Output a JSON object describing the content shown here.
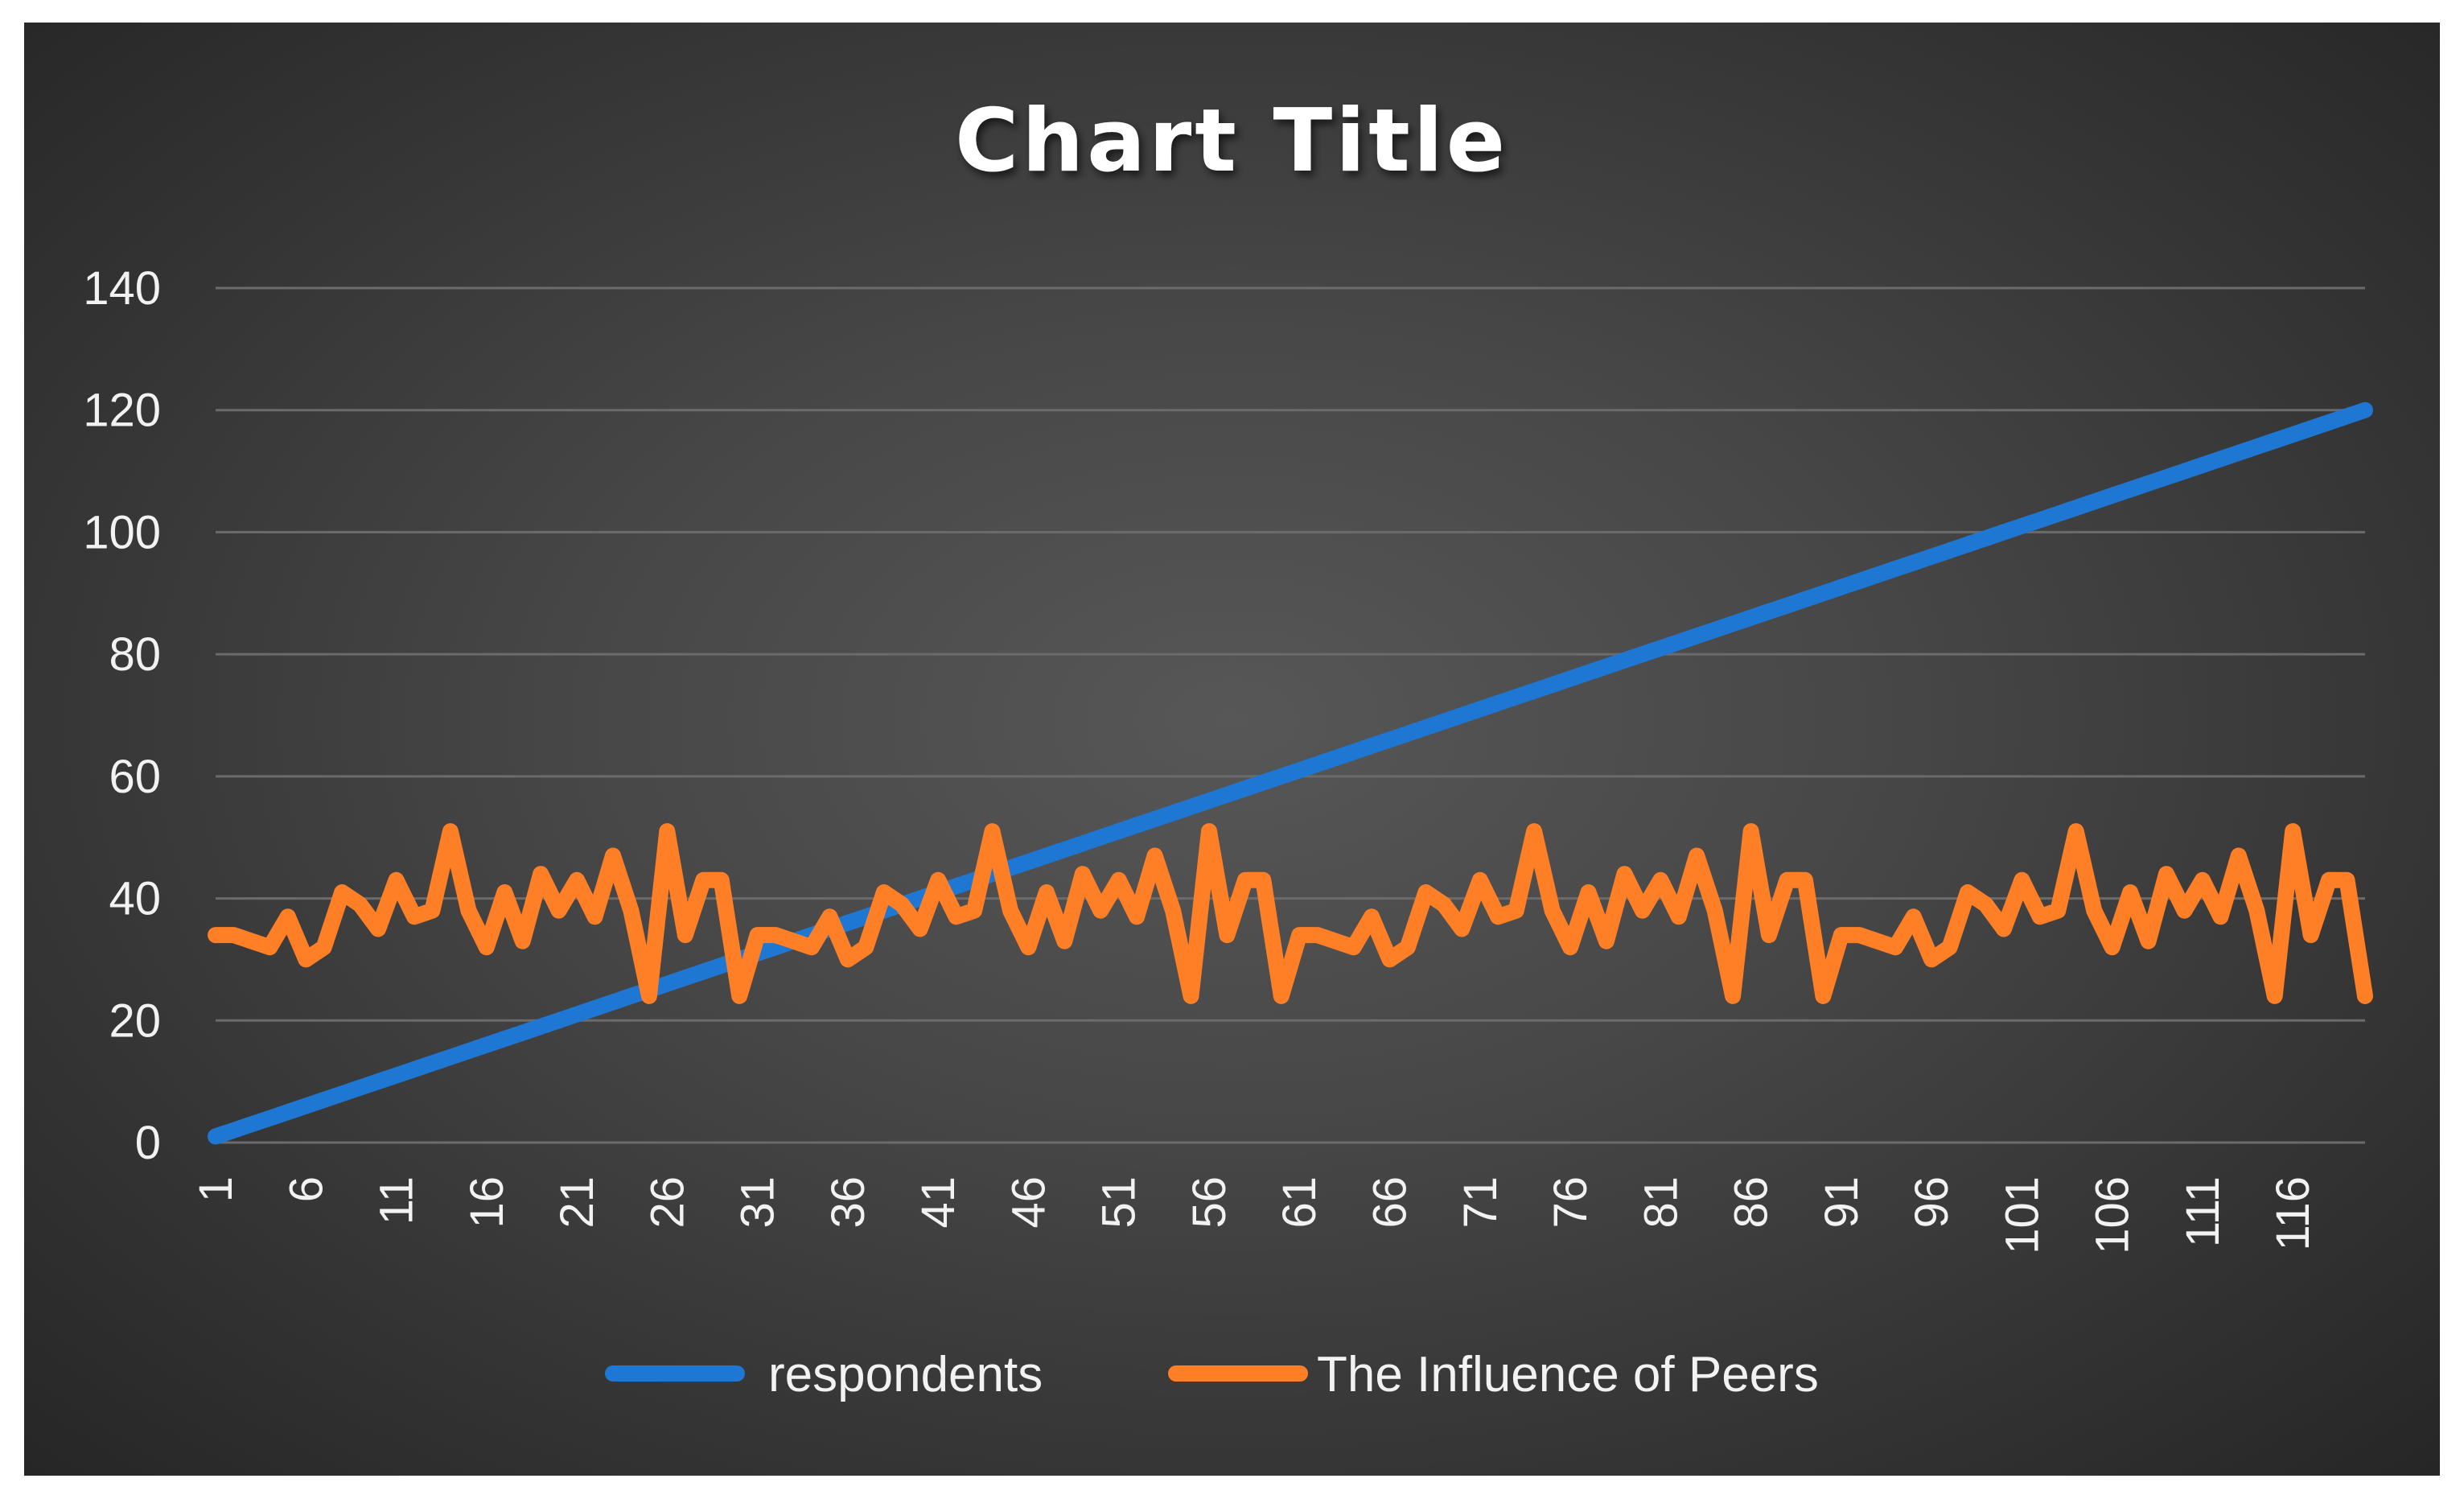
{
  "chart_data": {
    "type": "line",
    "title": "Chart Title",
    "xlabel": "",
    "ylabel": "",
    "ylim": [
      0,
      140
    ],
    "yticks": [
      0,
      20,
      40,
      60,
      80,
      100,
      120,
      140
    ],
    "xtick_labels": [
      "1",
      "6",
      "11",
      "16",
      "21",
      "26",
      "31",
      "36",
      "41",
      "46",
      "51",
      "56",
      "61",
      "66",
      "71",
      "76",
      "81",
      "86",
      "91",
      "96",
      "101",
      "106",
      "111",
      "116"
    ],
    "x": [
      1,
      2,
      3,
      4,
      5,
      6,
      7,
      8,
      9,
      10,
      11,
      12,
      13,
      14,
      15,
      16,
      17,
      18,
      19,
      20,
      21,
      22,
      23,
      24,
      25,
      26,
      27,
      28,
      29,
      30,
      31,
      32,
      33,
      34,
      35,
      36,
      37,
      38,
      39,
      40,
      41,
      42,
      43,
      44,
      45,
      46,
      47,
      48,
      49,
      50,
      51,
      52,
      53,
      54,
      55,
      56,
      57,
      58,
      59,
      60,
      61,
      62,
      63,
      64,
      65,
      66,
      67,
      68,
      69,
      70,
      71,
      72,
      73,
      74,
      75,
      76,
      77,
      78,
      79,
      80,
      81,
      82,
      83,
      84,
      85,
      86,
      87,
      88,
      89,
      90,
      91,
      92,
      93,
      94,
      95,
      96,
      97,
      98,
      99,
      100,
      101,
      102,
      103,
      104,
      105,
      106,
      107,
      108,
      109,
      110,
      111,
      112,
      113,
      114,
      115,
      116,
      117,
      118,
      119,
      120
    ],
    "grid": true,
    "legend_position": "bottom",
    "series": [
      {
        "name": "respondents",
        "color": "#1f77d4",
        "values": [
          1,
          2,
          3,
          4,
          5,
          6,
          7,
          8,
          9,
          10,
          11,
          12,
          13,
          14,
          15,
          16,
          17,
          18,
          19,
          20,
          21,
          22,
          23,
          24,
          25,
          26,
          27,
          28,
          29,
          30,
          31,
          32,
          33,
          34,
          35,
          36,
          37,
          38,
          39,
          40,
          41,
          42,
          43,
          44,
          45,
          46,
          47,
          48,
          49,
          50,
          51,
          52,
          53,
          54,
          55,
          56,
          57,
          58,
          59,
          60,
          61,
          62,
          63,
          64,
          65,
          66,
          67,
          68,
          69,
          70,
          71,
          72,
          73,
          74,
          75,
          76,
          77,
          78,
          79,
          80,
          81,
          82,
          83,
          84,
          85,
          86,
          87,
          88,
          89,
          90,
          91,
          92,
          93,
          94,
          95,
          96,
          97,
          98,
          99,
          100,
          101,
          102,
          103,
          104,
          105,
          106,
          107,
          108,
          109,
          110,
          111,
          112,
          113,
          114,
          115,
          116,
          117,
          118,
          119,
          120
        ]
      },
      {
        "name": "The Influence of Peers",
        "color": "#ff7f27",
        "values": [
          34,
          34,
          33,
          32,
          37,
          30,
          32,
          41,
          39,
          35,
          43,
          37,
          38,
          51,
          38,
          32,
          41,
          33,
          44,
          38,
          43,
          37,
          47,
          38,
          24,
          51,
          34,
          43,
          43,
          24,
          34,
          34,
          33,
          32,
          37,
          30,
          32,
          41,
          39,
          35,
          43,
          37,
          38,
          51,
          38,
          32,
          41,
          33,
          44,
          38,
          43,
          37,
          47,
          38,
          24,
          51,
          34,
          43,
          43,
          24,
          34,
          34,
          33,
          32,
          37,
          30,
          32,
          41,
          39,
          35,
          43,
          37,
          38,
          51,
          38,
          32,
          41,
          33,
          44,
          38,
          43,
          37,
          47,
          38,
          24,
          51,
          34,
          43,
          43,
          24,
          34,
          34,
          33,
          32,
          37,
          30,
          32,
          41,
          39,
          35,
          43,
          37,
          38,
          51,
          38,
          32,
          41,
          33,
          44,
          38,
          43,
          37,
          47,
          38,
          24,
          51,
          34,
          43,
          43,
          24
        ]
      }
    ]
  }
}
